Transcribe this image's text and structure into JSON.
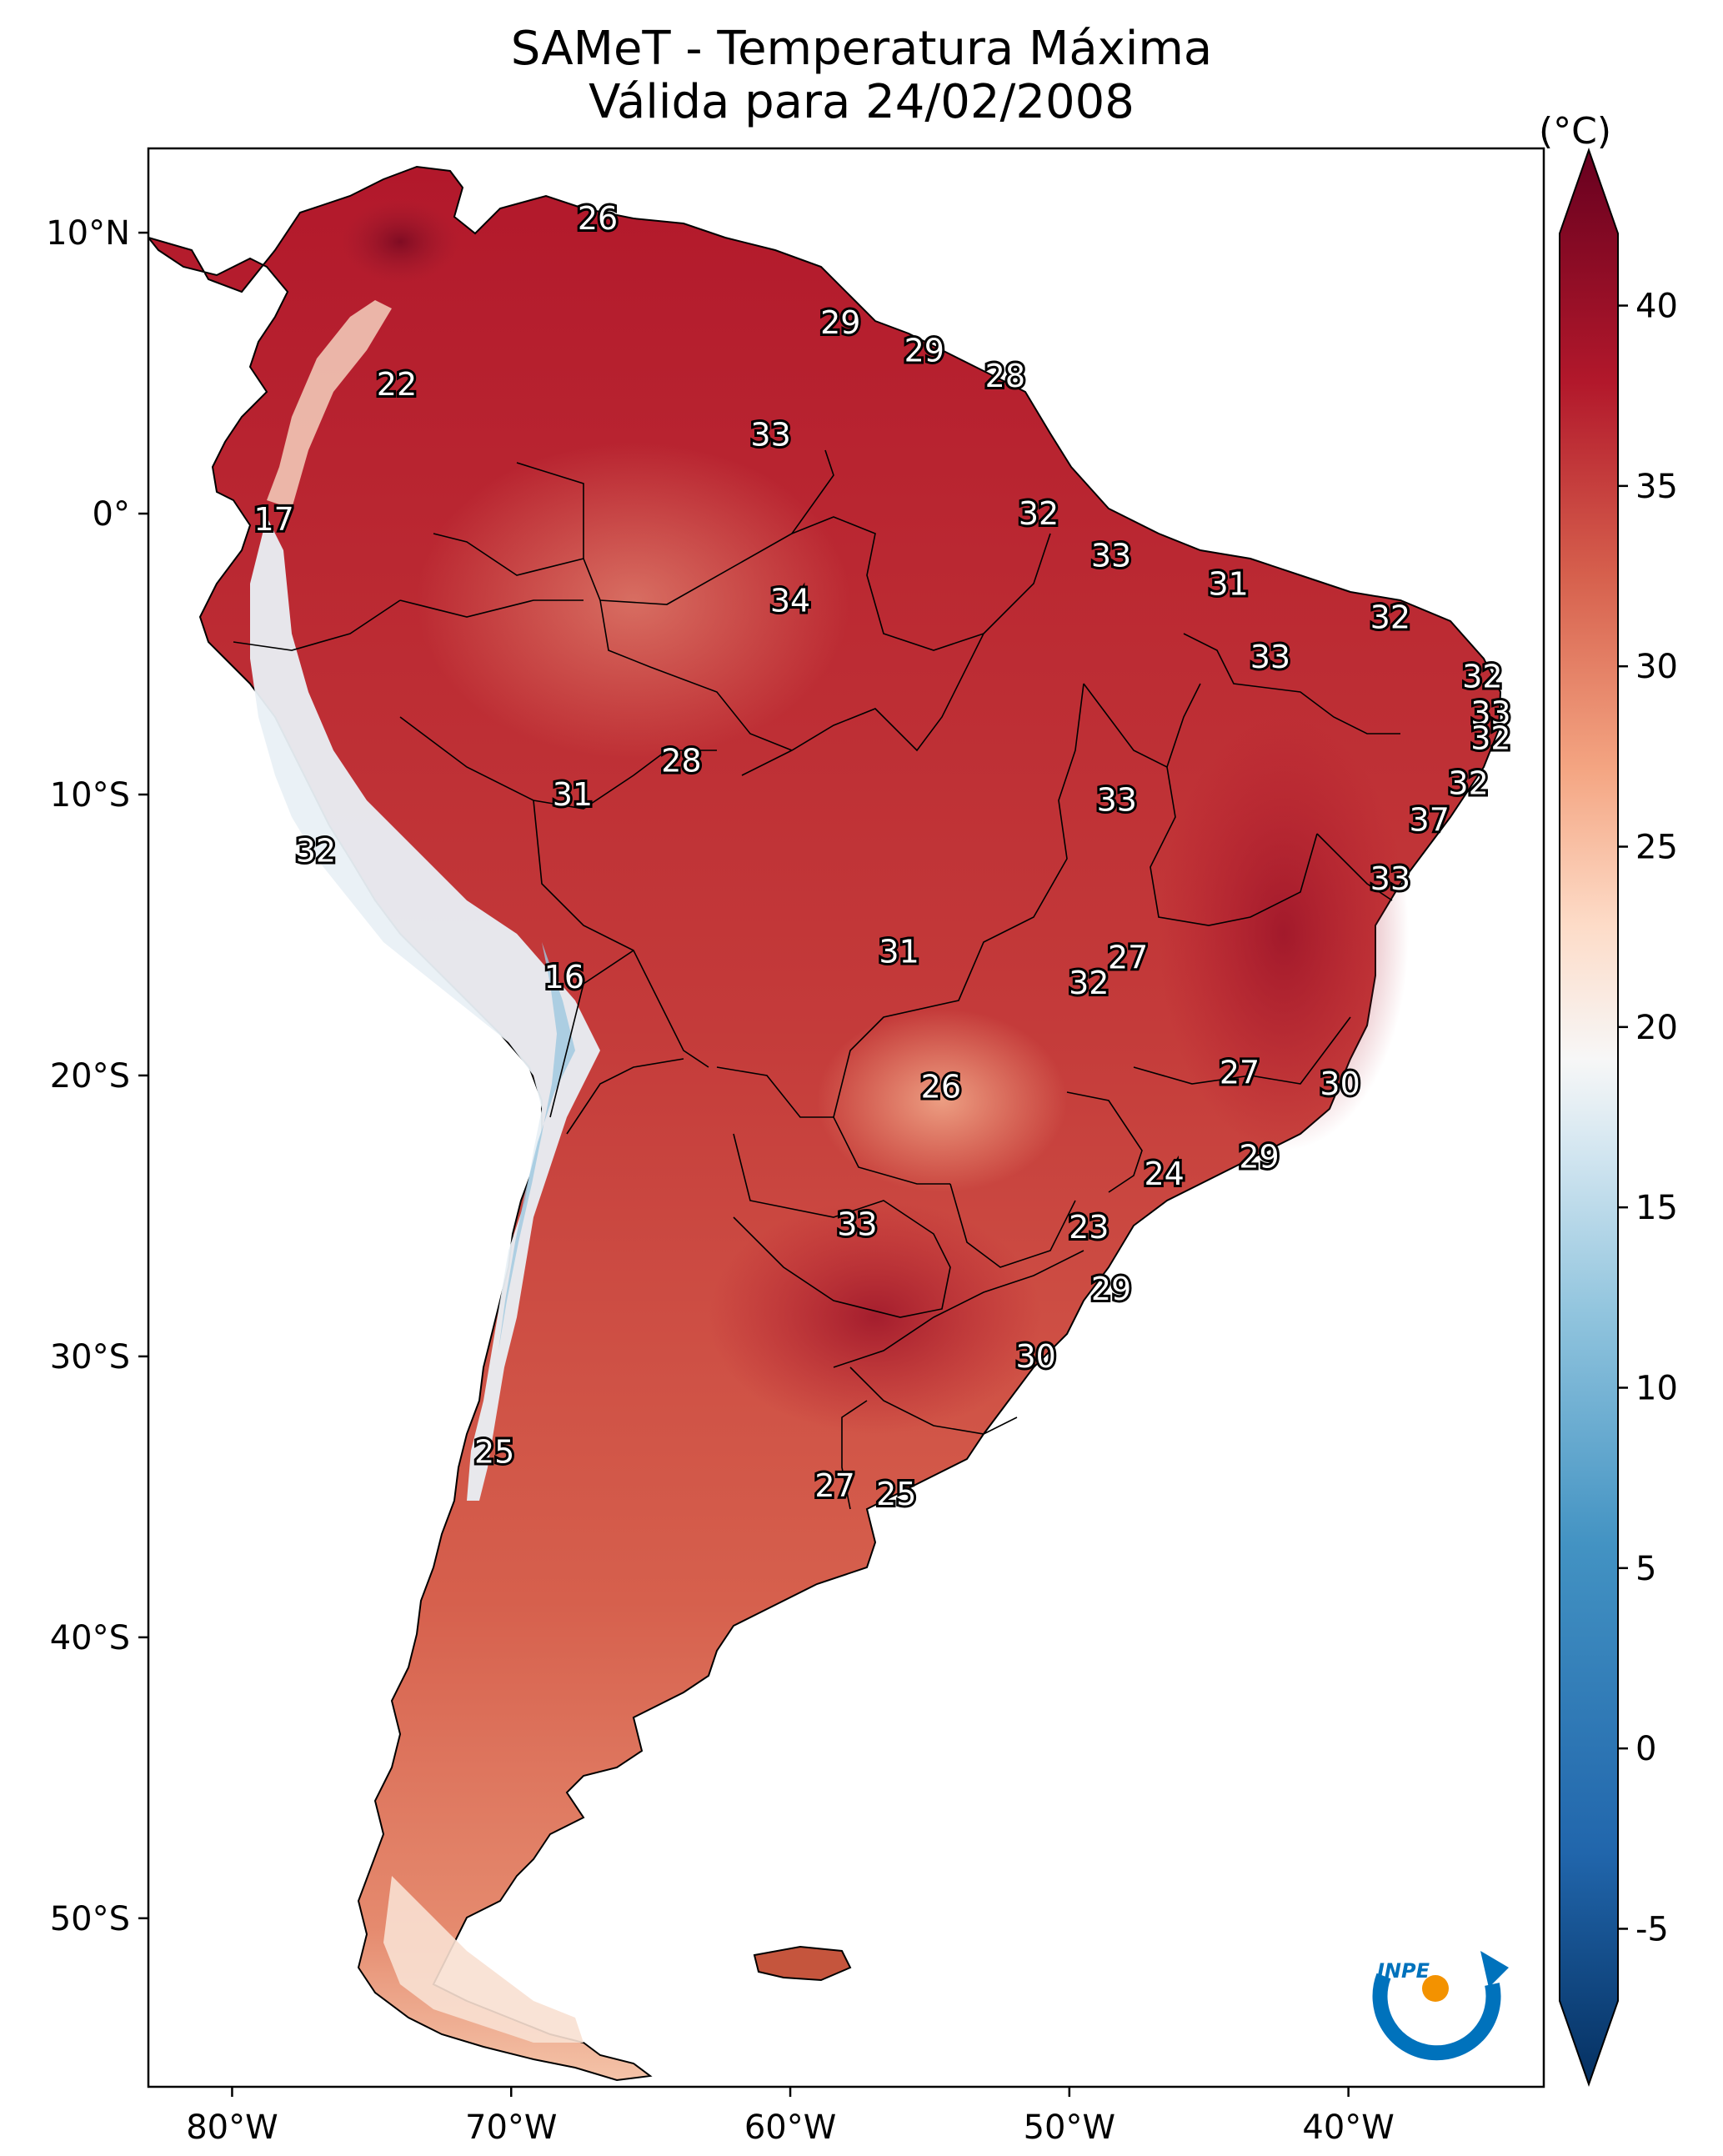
{
  "map": {
    "title_line1": "SAMeT - Temperatura Máxima",
    "title_line2": "Válida para 24/02/2008",
    "extent": {
      "lon": [
        -83,
        -33
      ],
      "lat": [
        -56,
        13
      ]
    },
    "lon_ticks": [
      {
        "value": -80,
        "label": "80°W"
      },
      {
        "value": -70,
        "label": "70°W"
      },
      {
        "value": -60,
        "label": "60°W"
      },
      {
        "value": -50,
        "label": "50°W"
      },
      {
        "value": -40,
        "label": "40°W"
      }
    ],
    "lat_ticks": [
      {
        "value": 10,
        "label": "10°N"
      },
      {
        "value": 0,
        "label": "0°"
      },
      {
        "value": -10,
        "label": "10°S"
      },
      {
        "value": -20,
        "label": "20°S"
      },
      {
        "value": -30,
        "label": "30°S"
      },
      {
        "value": -40,
        "label": "40°S"
      },
      {
        "value": -50,
        "label": "50°S"
      }
    ],
    "city_values": [
      {
        "lon": -66.9,
        "lat": 10.5,
        "value": "26"
      },
      {
        "lon": -74.1,
        "lat": 4.6,
        "value": "22"
      },
      {
        "lon": -78.5,
        "lat": -0.2,
        "value": "17"
      },
      {
        "lon": -77.0,
        "lat": -12.0,
        "value": "32"
      },
      {
        "lon": -68.1,
        "lat": -16.5,
        "value": "16"
      },
      {
        "lon": -70.6,
        "lat": -33.4,
        "value": "25"
      },
      {
        "lon": -58.2,
        "lat": 6.8,
        "value": "29"
      },
      {
        "lon": -55.2,
        "lat": 5.8,
        "value": "29"
      },
      {
        "lon": -52.3,
        "lat": 4.9,
        "value": "28"
      },
      {
        "lon": -60.7,
        "lat": 2.8,
        "value": "33"
      },
      {
        "lon": -51.1,
        "lat": 0.0,
        "value": "32"
      },
      {
        "lon": -48.5,
        "lat": -1.5,
        "value": "33"
      },
      {
        "lon": -44.3,
        "lat": -2.5,
        "value": "31"
      },
      {
        "lon": -38.5,
        "lat": -3.7,
        "value": "32"
      },
      {
        "lon": -60.0,
        "lat": -3.1,
        "value": "34"
      },
      {
        "lon": -42.8,
        "lat": -5.1,
        "value": "33"
      },
      {
        "lon": -35.2,
        "lat": -5.8,
        "value": "32"
      },
      {
        "lon": -34.9,
        "lat": -7.1,
        "value": "33"
      },
      {
        "lon": -34.9,
        "lat": -8.0,
        "value": "32"
      },
      {
        "lon": -35.7,
        "lat": -9.6,
        "value": "32"
      },
      {
        "lon": -37.1,
        "lat": -10.9,
        "value": "37"
      },
      {
        "lon": -38.5,
        "lat": -13.0,
        "value": "33"
      },
      {
        "lon": -63.9,
        "lat": -8.8,
        "value": "28"
      },
      {
        "lon": -67.8,
        "lat": -10.0,
        "value": "31"
      },
      {
        "lon": -48.3,
        "lat": -10.2,
        "value": "33"
      },
      {
        "lon": -56.1,
        "lat": -15.6,
        "value": "31"
      },
      {
        "lon": -47.9,
        "lat": -15.8,
        "value": "27"
      },
      {
        "lon": -49.3,
        "lat": -16.7,
        "value": "32"
      },
      {
        "lon": -54.6,
        "lat": -20.4,
        "value": "26"
      },
      {
        "lon": -43.9,
        "lat": -19.9,
        "value": "27"
      },
      {
        "lon": -40.3,
        "lat": -20.3,
        "value": "30"
      },
      {
        "lon": -43.2,
        "lat": -22.9,
        "value": "29"
      },
      {
        "lon": -46.6,
        "lat": -23.5,
        "value": "24"
      },
      {
        "lon": -49.3,
        "lat": -25.4,
        "value": "23"
      },
      {
        "lon": -57.6,
        "lat": -25.3,
        "value": "33"
      },
      {
        "lon": -48.5,
        "lat": -27.6,
        "value": "29"
      },
      {
        "lon": -51.2,
        "lat": -30.0,
        "value": "30"
      },
      {
        "lon": -58.4,
        "lat": -34.6,
        "value": "27"
      },
      {
        "lon": -56.2,
        "lat": -34.9,
        "value": "25"
      }
    ]
  },
  "colorbar": {
    "unit_label": "(°C)",
    "range": [
      -7,
      42
    ],
    "ticks": [
      {
        "value": -5,
        "label": "-5"
      },
      {
        "value": 0,
        "label": "0"
      },
      {
        "value": 5,
        "label": "5"
      },
      {
        "value": 10,
        "label": "10"
      },
      {
        "value": 15,
        "label": "15"
      },
      {
        "value": 20,
        "label": "20"
      },
      {
        "value": 25,
        "label": "25"
      },
      {
        "value": 30,
        "label": "30"
      },
      {
        "value": 35,
        "label": "35"
      },
      {
        "value": 40,
        "label": "40"
      }
    ],
    "colors": [
      "#053061",
      "#2166ac",
      "#4393c3",
      "#92c5de",
      "#d1e5f0",
      "#f7f7f7",
      "#fddbc7",
      "#f4a582",
      "#d6604d",
      "#b2182b",
      "#67001f"
    ]
  },
  "logo": {
    "text": "INPE",
    "orange": "#f39200",
    "blue": "#0072bc"
  }
}
